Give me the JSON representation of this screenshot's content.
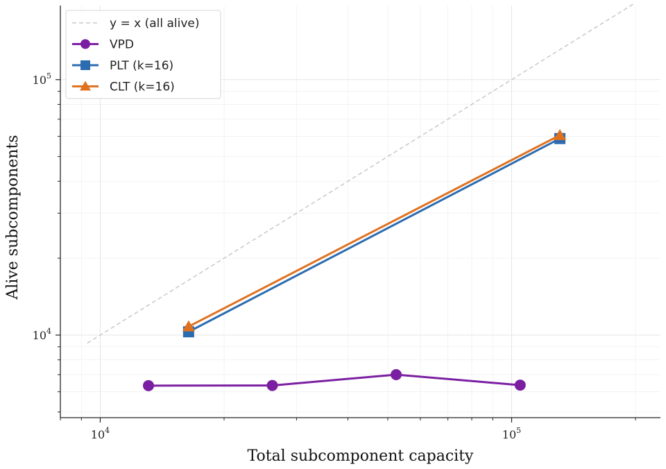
{
  "chart_data": {
    "type": "line",
    "xlabel": "Total subcomponent capacity",
    "ylabel": "Alive subcomponents",
    "x_scale": "log",
    "y_scale": "log",
    "xlim": [
      8000,
      230000
    ],
    "ylim": [
      4750,
      195000
    ],
    "grid": true,
    "legend_position": "top-left",
    "x_major_ticks": [
      {
        "value": 10000,
        "base": "10",
        "exp": "4"
      },
      {
        "value": 100000,
        "base": "10",
        "exp": "5"
      }
    ],
    "y_major_ticks": [
      {
        "value": 10000,
        "base": "10",
        "exp": "4"
      },
      {
        "value": 100000,
        "base": "10",
        "exp": "5"
      }
    ],
    "reference_line": {
      "name": "y = x (all alive)",
      "x": [
        9300,
        200000
      ],
      "y": [
        9300,
        200000
      ],
      "color": "#c8c8c8"
    },
    "series": [
      {
        "name": "VPD",
        "marker": "circle",
        "color": "#7b1fa2",
        "x": [
          13100,
          26200,
          52400,
          104900
        ],
        "y": [
          6340,
          6350,
          7000,
          6370
        ]
      },
      {
        "name": "PLT (k=16)",
        "marker": "square",
        "color": "#2b6cb0",
        "x": [
          16400,
          131000
        ],
        "y": [
          10300,
          58800
        ]
      },
      {
        "name": "CLT (k=16)",
        "marker": "triangle",
        "color": "#e0711f",
        "x": [
          16400,
          131000
        ],
        "y": [
          10800,
          60600
        ]
      }
    ]
  }
}
